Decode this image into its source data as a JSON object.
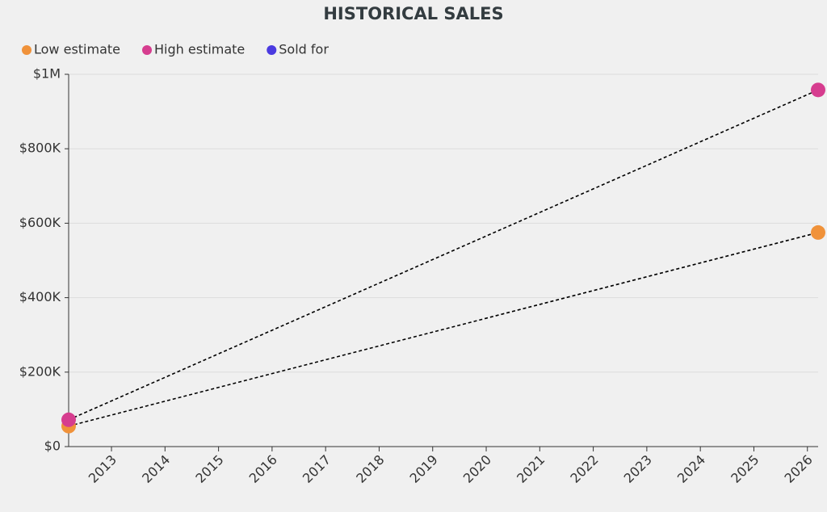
{
  "chart_data": {
    "type": "line",
    "title": "HISTORICAL SALES",
    "x": [
      2012.2,
      2026.2
    ],
    "series": [
      {
        "name": "Low estimate",
        "color": "#f0923a",
        "values": [
          55000,
          575000
        ]
      },
      {
        "name": "High estimate",
        "color": "#d63d8f",
        "values": [
          72000,
          958000
        ]
      },
      {
        "name": "Sold for",
        "color": "#4a3ae0",
        "values": [
          null,
          null
        ]
      }
    ],
    "xlim": [
      2012.2,
      2026.2
    ],
    "xticks": [
      2013,
      2014,
      2015,
      2016,
      2017,
      2018,
      2019,
      2020,
      2021,
      2022,
      2023,
      2024,
      2025,
      2026
    ],
    "ylim": [
      0,
      1000000
    ],
    "yticks": [
      {
        "value": 0,
        "label": "$0"
      },
      {
        "value": 200000,
        "label": "$200K"
      },
      {
        "value": 400000,
        "label": "$400K"
      },
      {
        "value": 600000,
        "label": "$600K"
      },
      {
        "value": 800000,
        "label": "$800K"
      },
      {
        "value": 1000000,
        "label": "$1M"
      }
    ],
    "grid": true,
    "line_color": "#000000",
    "legend": "top-left"
  }
}
